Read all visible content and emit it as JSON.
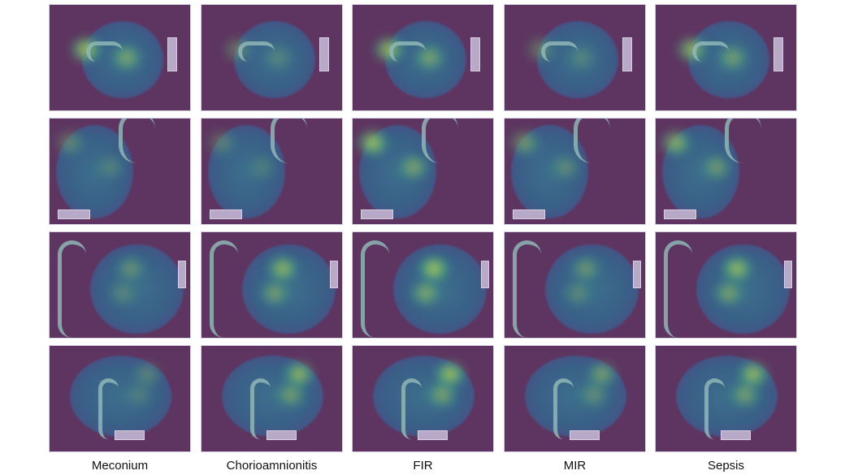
{
  "columns": [
    {
      "label": "Meconium"
    },
    {
      "label": "Chorioamnionitis"
    },
    {
      "label": "FIR"
    },
    {
      "label": "MIR"
    },
    {
      "label": "Sepsis"
    }
  ],
  "rows": 4,
  "colors": {
    "background": "#5e3560",
    "heat_high": "#e8d23a",
    "heat_mid": "#3fae86",
    "tissue": "#3a5f88"
  },
  "heat_intensity": [
    [
      0.9,
      0.4,
      0.85,
      0.4,
      0.8
    ],
    [
      0.4,
      0.35,
      0.9,
      0.55,
      0.75
    ],
    [
      0.45,
      0.8,
      0.95,
      0.5,
      0.85
    ],
    [
      0.35,
      0.8,
      0.9,
      0.6,
      0.85
    ]
  ]
}
